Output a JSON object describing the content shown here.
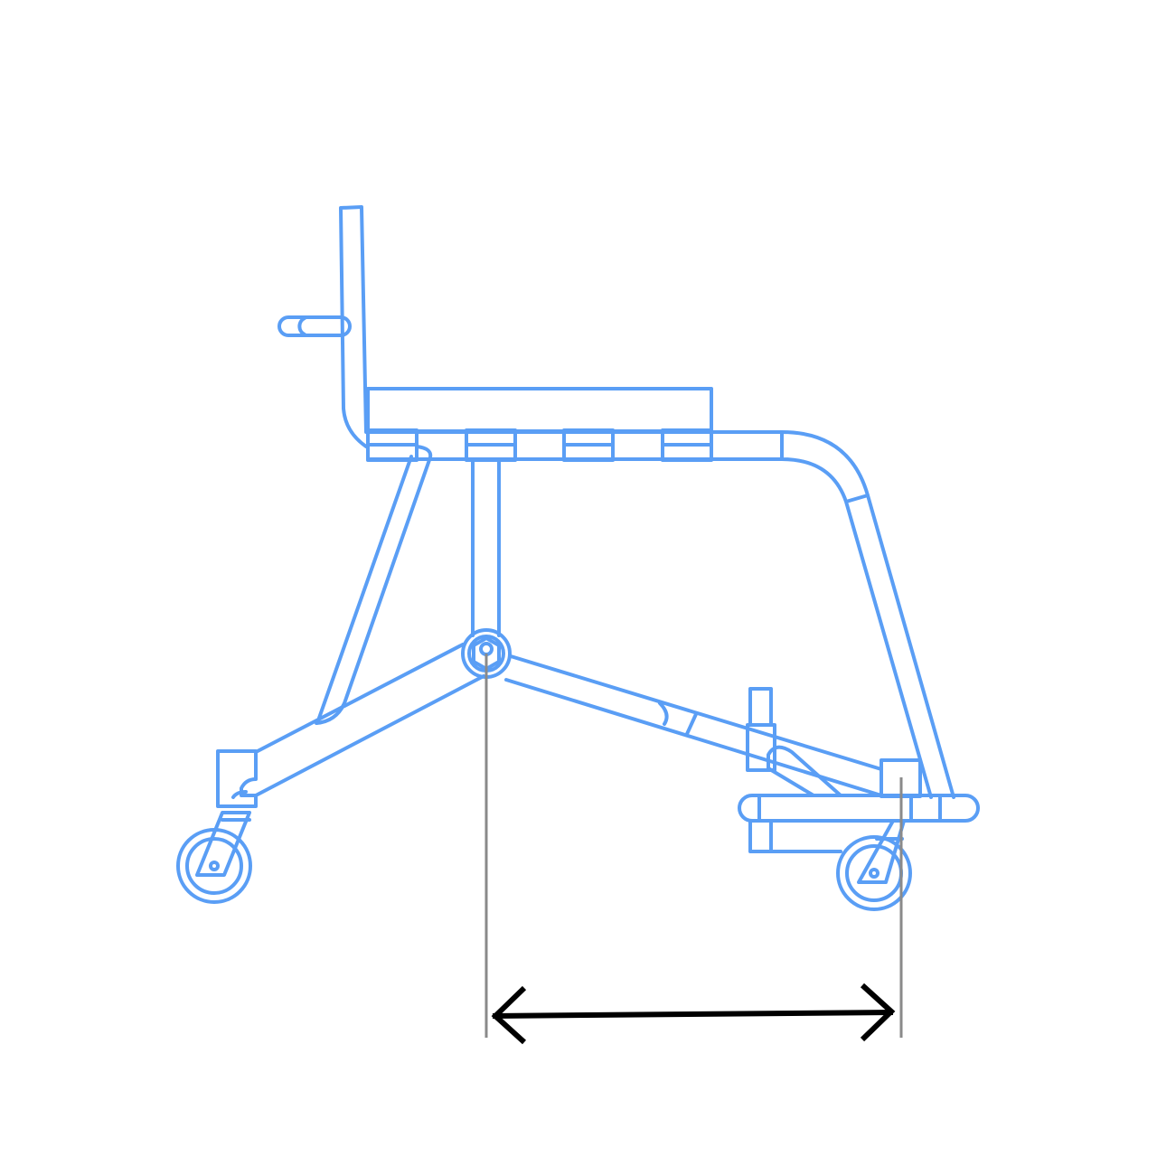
{
  "diagram": {
    "subject": "wheelchair-frame-side-view",
    "colors": {
      "frame": "#5a9ef5",
      "guide_line": "#8a8a8a",
      "arrow": "#000000",
      "background": "#ffffff"
    },
    "dimension": {
      "type": "double-headed-arrow",
      "from": "center-pivot-joint",
      "to": "front-caster-axle",
      "label": ""
    }
  }
}
